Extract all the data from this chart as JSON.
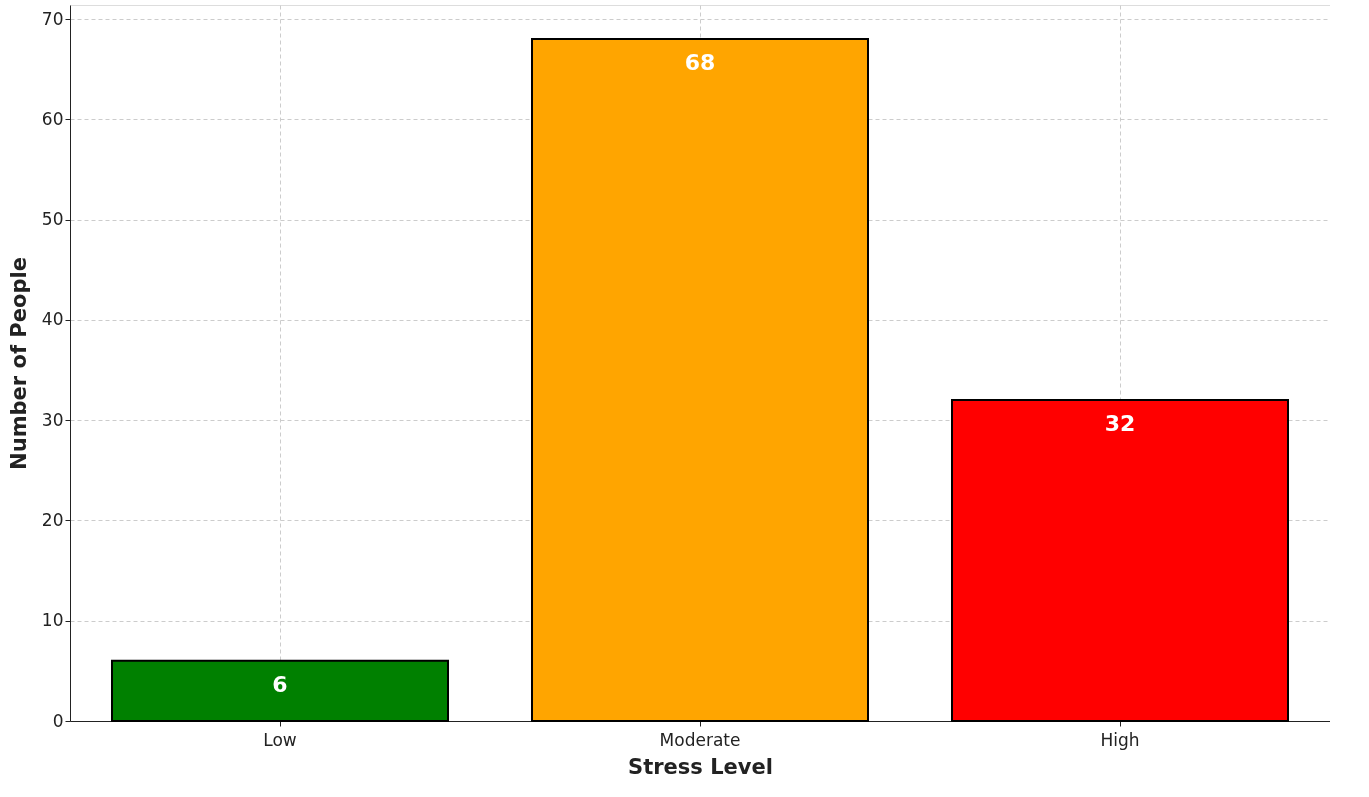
{
  "chart_data": {
    "type": "bar",
    "categories": [
      "Low",
      "Moderate",
      "High"
    ],
    "values": [
      6,
      68,
      32
    ],
    "colors": [
      "#008000",
      "#ffa500",
      "#ff0000"
    ],
    "xlabel": "Stress Level",
    "ylabel": "Number of People",
    "ylim": [
      0,
      71.4
    ],
    "yticks": [
      0,
      10,
      20,
      30,
      40,
      50,
      60,
      70
    ],
    "grid": true,
    "data_labels": true
  }
}
